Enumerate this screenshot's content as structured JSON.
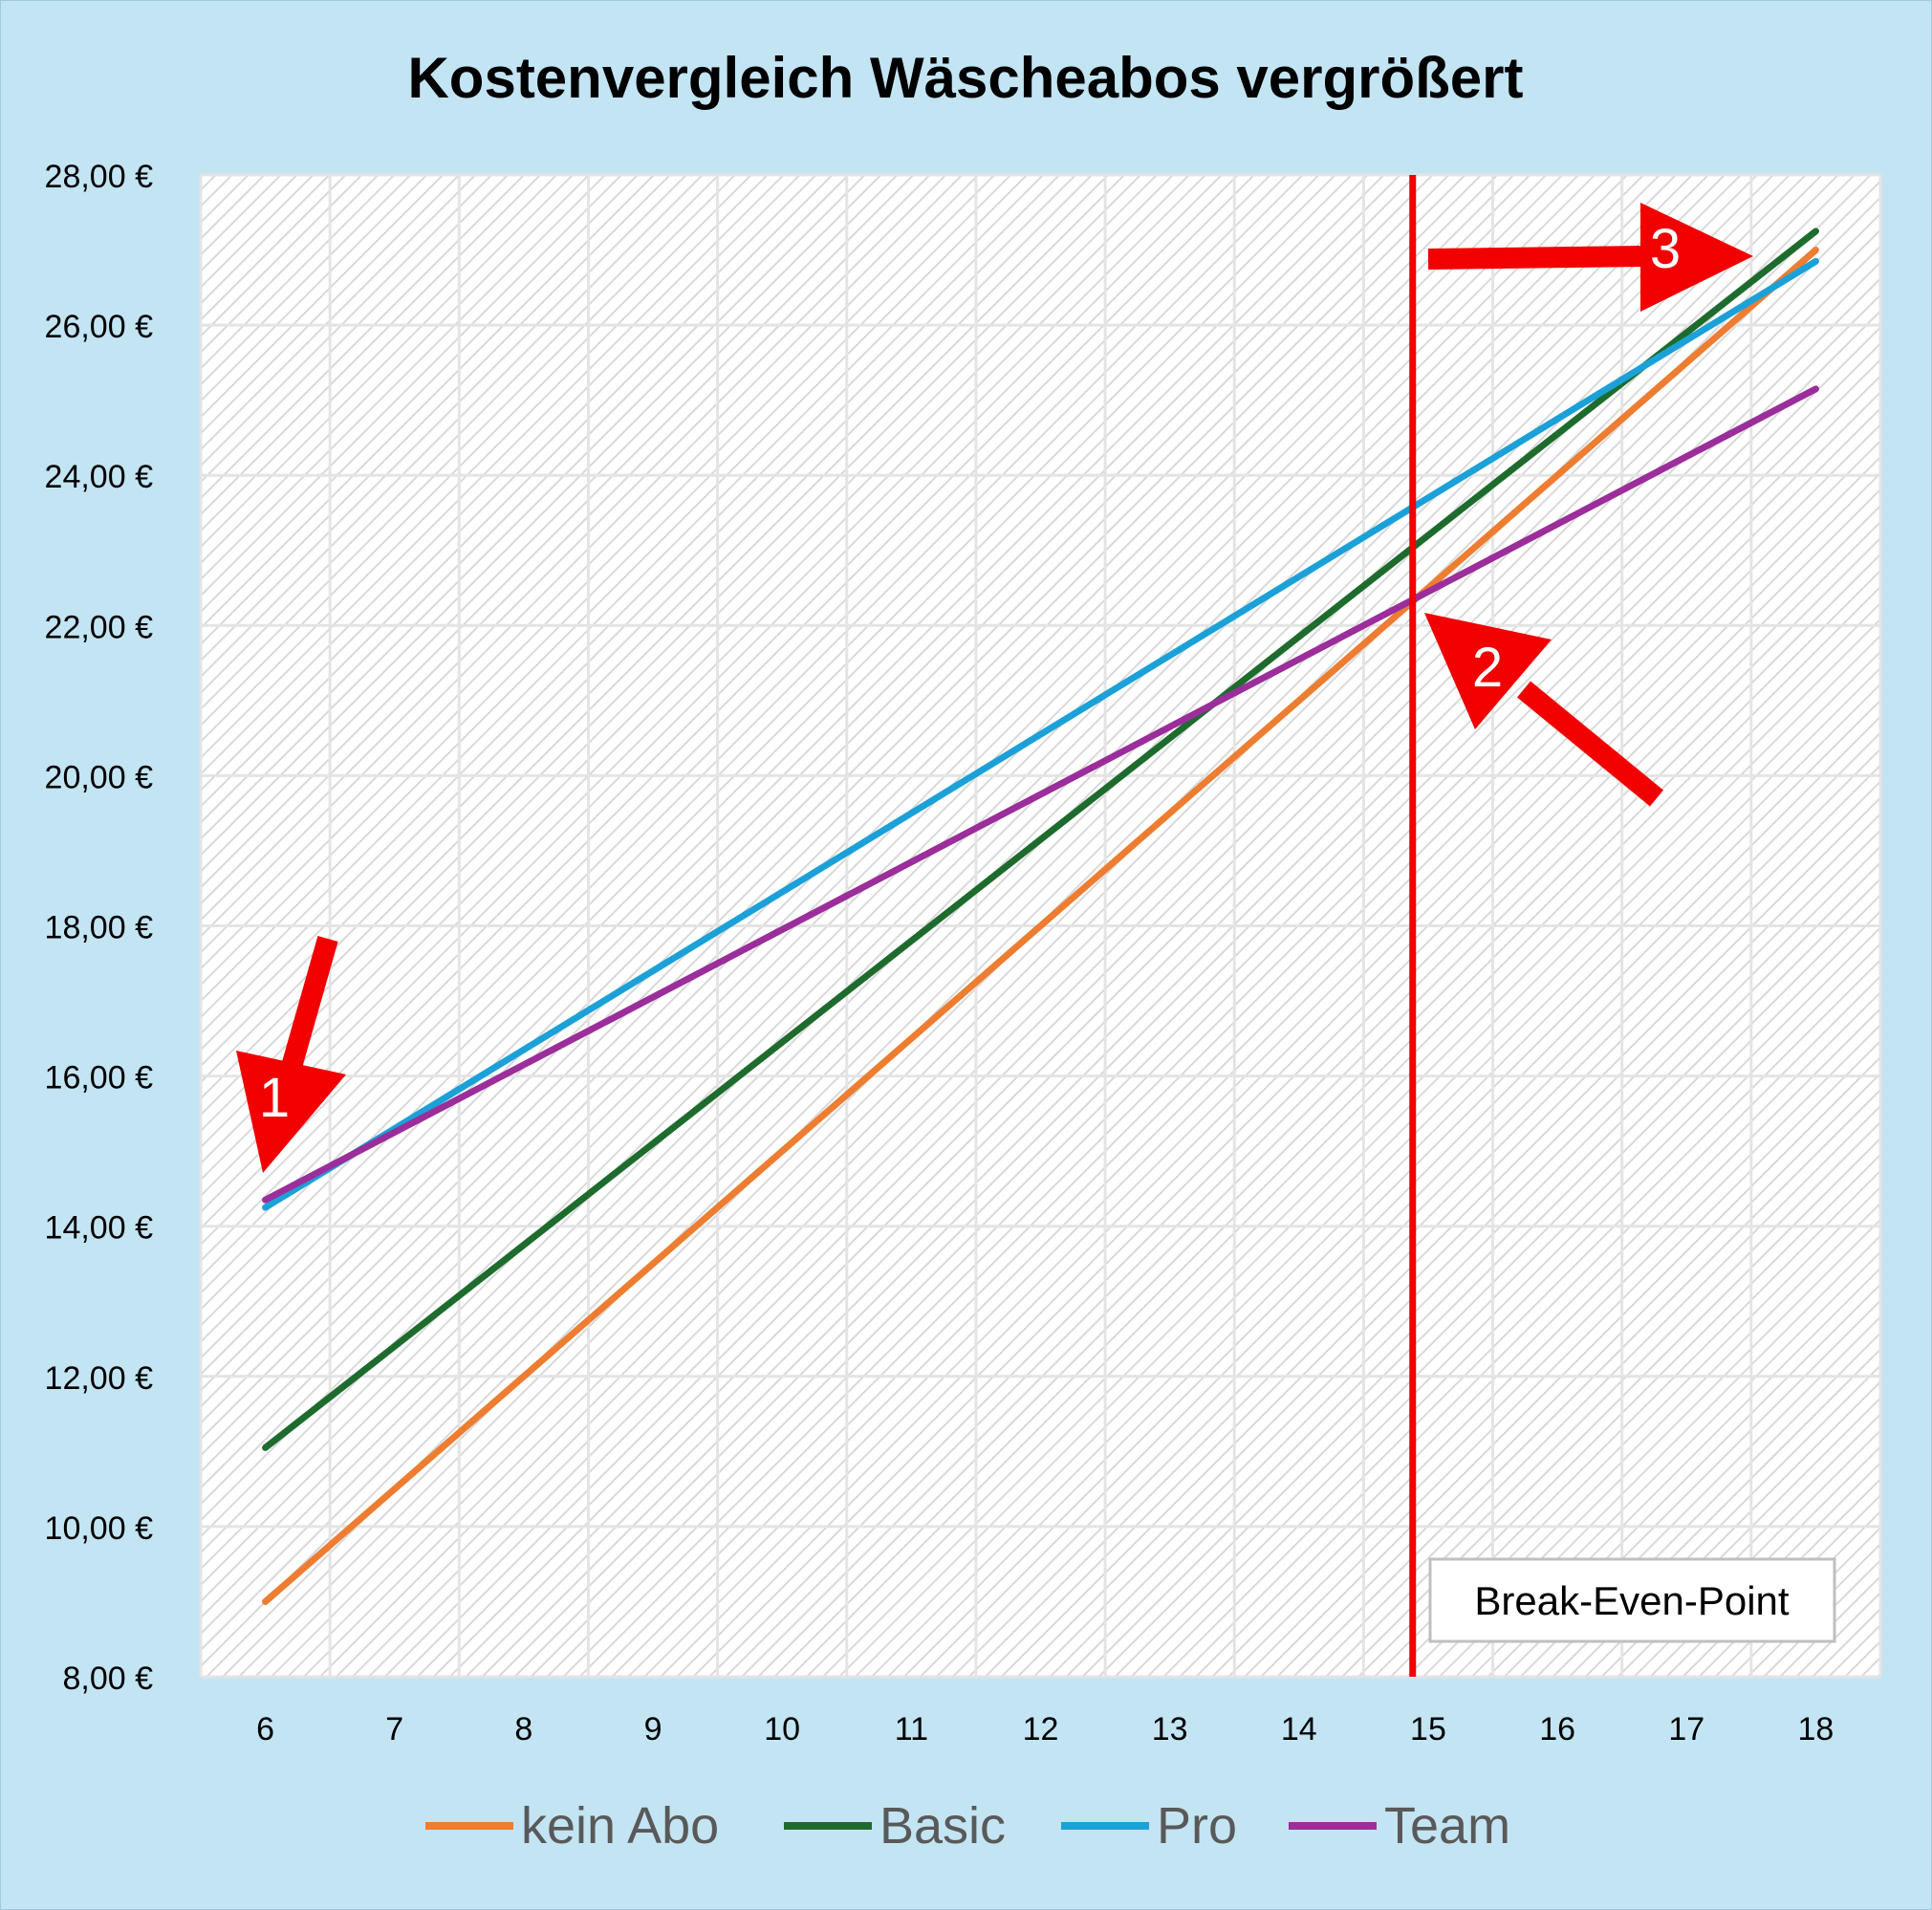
{
  "chart_data": {
    "type": "line",
    "title": "Kostenvergleich  Wäscheabos vergrößert",
    "xlabel": "",
    "ylabel": "",
    "x": [
      6,
      7,
      8,
      9,
      10,
      11,
      12,
      13,
      14,
      15,
      16,
      17,
      18
    ],
    "xlim": [
      5.5,
      18.5
    ],
    "ylim": [
      8,
      28
    ],
    "yticks": [
      8,
      10,
      12,
      14,
      16,
      18,
      20,
      22,
      24,
      26,
      28
    ],
    "ytick_labels": [
      "8,00 €",
      "10,00 €",
      "12,00 €",
      "14,00 €",
      "16,00 €",
      "18,00 €",
      "20,00 €",
      "22,00 €",
      "24,00 €",
      "26,00 €",
      "28,00 €"
    ],
    "xtick_labels": [
      "6",
      "7",
      "8",
      "9",
      "10",
      "11",
      "12",
      "13",
      "14",
      "15",
      "16",
      "17",
      "18"
    ],
    "grid": true,
    "legend_position": "bottom",
    "series": [
      {
        "name": "kein Abo",
        "color": "#ED7D31",
        "start": [
          6,
          9.0
        ],
        "end": [
          18,
          27.0
        ]
      },
      {
        "name": "Basic",
        "color": "#1E6B2E",
        "start": [
          6,
          11.05
        ],
        "end": [
          18,
          27.25
        ]
      },
      {
        "name": "Pro",
        "color": "#1BA1D8",
        "start": [
          6,
          14.25
        ],
        "end": [
          18,
          26.85
        ]
      },
      {
        "name": "Team",
        "color": "#9B2E9A",
        "start": [
          6,
          14.35
        ],
        "end": [
          18,
          25.15
        ]
      }
    ],
    "vertical_line": {
      "x": 14.88,
      "color": "#F20000"
    },
    "annotations": [
      {
        "label": "1",
        "x": 6.05,
        "y": 14.7,
        "direction": "down"
      },
      {
        "label": "2",
        "x": 15.0,
        "y": 22.3,
        "direction": "up-left"
      },
      {
        "label": "3",
        "x": 17.5,
        "y": 26.9,
        "direction": "right"
      }
    ],
    "text_box": "Break-Even-Point"
  },
  "colors": {
    "frame_background": "#C3E4F3",
    "plot_background": "#FFFFFF",
    "arrow": "#F20000",
    "title": "#000000",
    "legend_text": "#595959"
  }
}
